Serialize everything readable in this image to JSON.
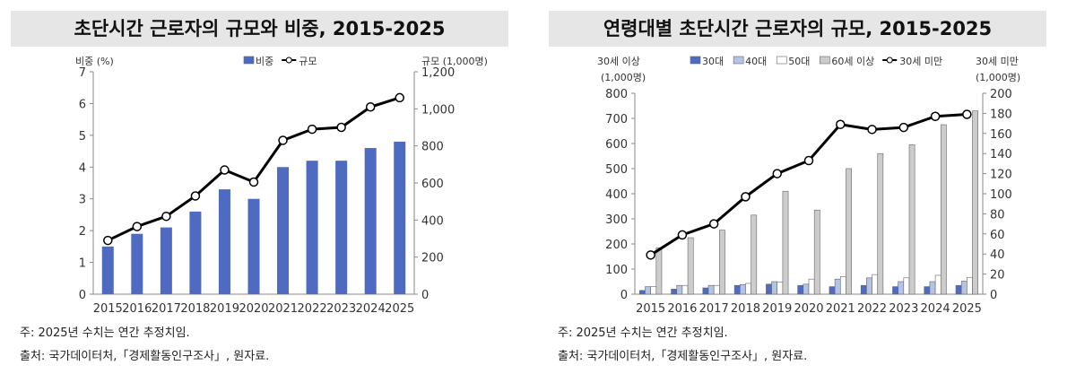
{
  "chart_data": [
    {
      "type": "bar+line",
      "title": "초단시간 근로자의 규모와 비중, 2015-2025",
      "categories": [
        "2015",
        "2016",
        "2017",
        "2018",
        "2019",
        "2020",
        "2021",
        "2022",
        "2023",
        "2024",
        "2025"
      ],
      "left_axis_label": "비중 (%)",
      "right_axis_label": "규모 (1,000명)",
      "ylim_left": [
        0,
        7
      ],
      "yticks_left": [
        "0",
        "1",
        "2",
        "3",
        "4",
        "5",
        "6",
        "7"
      ],
      "ylim_right": [
        0,
        1200
      ],
      "yticks_right": [
        "0",
        "200",
        "400",
        "600",
        "800",
        "1,000",
        "1,200"
      ],
      "series": [
        {
          "name": "비중",
          "type": "bar",
          "axis": "left",
          "color": "#4f6bc1",
          "values": [
            1.5,
            1.9,
            2.1,
            2.6,
            3.3,
            3.0,
            4.0,
            4.2,
            4.2,
            4.6,
            4.8
          ]
        },
        {
          "name": "규모",
          "type": "line",
          "axis": "right",
          "color": "#000000",
          "values": [
            290,
            365,
            420,
            530,
            670,
            605,
            830,
            890,
            900,
            1010,
            1060
          ]
        }
      ],
      "legend": "top",
      "notes": [
        "주: 2025년 수치는 연간 추정치임.",
        "출처: 국가데이터처,「경제활동인구조사」, 원자료."
      ]
    },
    {
      "type": "bar+line",
      "title": "연령대별 초단시간 근로자의 규모, 2015-2025",
      "categories": [
        "2015",
        "2016",
        "2017",
        "2018",
        "2019",
        "2020",
        "2021",
        "2022",
        "2023",
        "2024",
        "2025"
      ],
      "left_axis_label": [
        "30세 이상",
        "(1,000명)"
      ],
      "right_axis_label": [
        "30세 미만",
        "(1,000명)"
      ],
      "ylim_left": [
        0,
        800
      ],
      "yticks_left": [
        "0",
        "100",
        "200",
        "300",
        "400",
        "500",
        "600",
        "700",
        "800"
      ],
      "ylim_right": [
        0,
        200
      ],
      "yticks_right": [
        "0",
        "20",
        "40",
        "60",
        "80",
        "100",
        "120",
        "140",
        "160",
        "180",
        "200"
      ],
      "series": [
        {
          "name": "30대",
          "type": "bar",
          "axis": "left",
          "color": "#4f6bc1",
          "values": [
            15,
            20,
            25,
            35,
            40,
            35,
            30,
            35,
            30,
            30,
            35
          ]
        },
        {
          "name": "40대",
          "type": "bar",
          "axis": "left",
          "color": "#b4c4e6",
          "values": [
            30,
            35,
            35,
            38,
            50,
            40,
            60,
            65,
            50,
            50,
            52
          ]
        },
        {
          "name": "50대",
          "type": "bar",
          "axis": "left",
          "color": "#ffffff",
          "values": [
            30,
            35,
            35,
            43,
            48,
            60,
            70,
            78,
            65,
            75,
            67
          ]
        },
        {
          "name": "60세 이상",
          "type": "bar",
          "axis": "left",
          "color": "#cccccc",
          "values": [
            185,
            225,
            255,
            315,
            410,
            335,
            500,
            560,
            595,
            675,
            730
          ]
        },
        {
          "name": "30세 미만",
          "type": "line",
          "axis": "right",
          "color": "#000000",
          "values": [
            39,
            59,
            70,
            97,
            120,
            133,
            169,
            164,
            166,
            177,
            179
          ]
        }
      ],
      "legend": "top",
      "notes": [
        "주: 2025년 수치는 연간 추정치임.",
        "출처: 국가데이터처,「경제활동인구조사」, 원자료."
      ]
    }
  ]
}
